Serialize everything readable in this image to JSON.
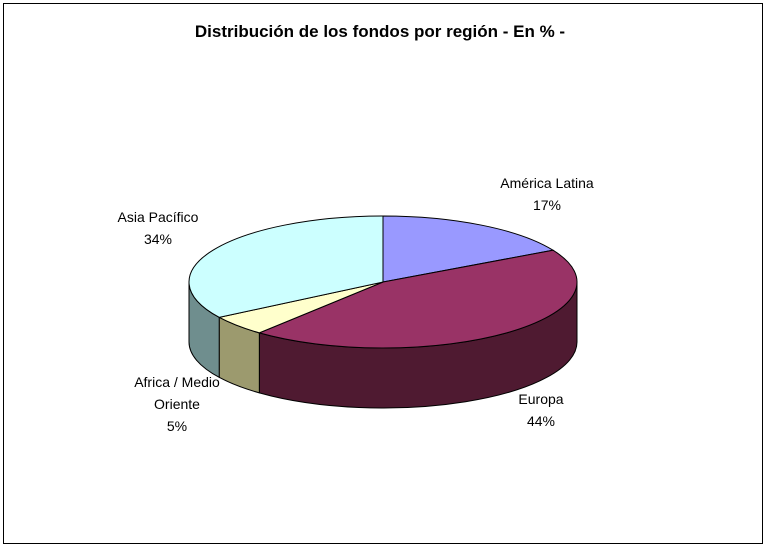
{
  "chart_data": {
    "type": "pie",
    "title": "Distribución de los fondos por región - En % -",
    "style": "3d",
    "slices": [
      {
        "label": "América Latina",
        "value": 17,
        "value_label": "17%",
        "color": "#9999ff",
        "side_color": "#6a6ab0"
      },
      {
        "label": "Europa",
        "value": 44,
        "value_label": "44%",
        "color": "#993366",
        "side_color": "#4f1a31"
      },
      {
        "label": "Africa / Medio Oriente",
        "label_lines": [
          "Africa / Medio",
          "Oriente"
        ],
        "value": 5,
        "value_label": "5%",
        "color": "#ffffcc",
        "side_color": "#9c9a6e"
      },
      {
        "label": "Asia Pacífico",
        "value": 34,
        "value_label": "34%",
        "color": "#ccffff",
        "side_color": "#6f8e8e"
      }
    ]
  }
}
